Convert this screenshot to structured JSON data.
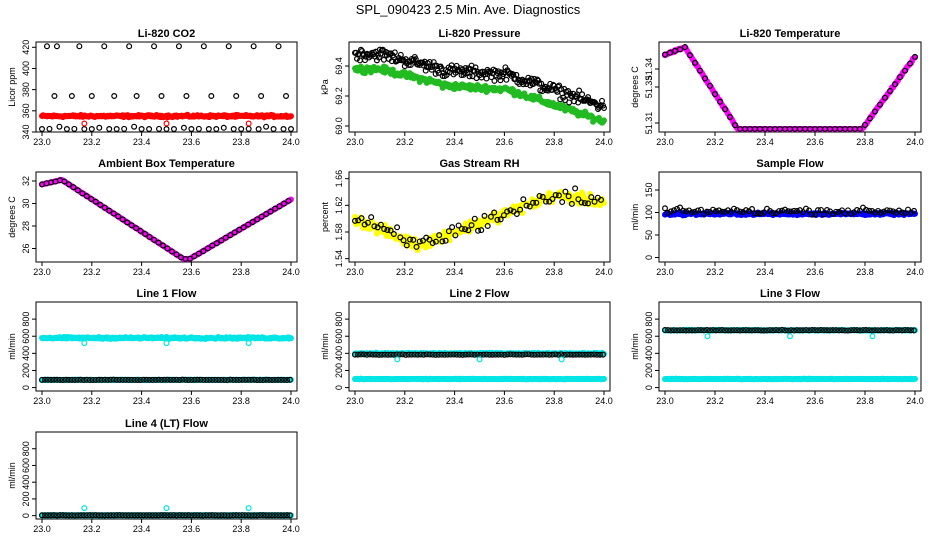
{
  "page_title": "SPL_090423  2.5 Min. Ave. Diagnostics",
  "chart_data": [
    {
      "id": "co2",
      "type": "scatter",
      "title": "Li-820 CO2",
      "ylabel": "Licor ppm",
      "xlim": [
        23.0,
        24.0
      ],
      "ylim": [
        340,
        425
      ],
      "xticks": [
        "23.0",
        "23.2",
        "23.4",
        "23.6",
        "23.8",
        "24.0"
      ],
      "yticks": [
        340,
        360,
        380,
        400,
        420
      ],
      "series": [
        {
          "name": "CO2 black",
          "color": "#000000",
          "shape": "open",
          "x": [
            23.0,
            23.03,
            23.07,
            23.1,
            23.13,
            23.17,
            23.2,
            23.23,
            23.27,
            23.3,
            23.33,
            23.37,
            23.4,
            23.43,
            23.47,
            23.5,
            23.53,
            23.57,
            23.6,
            23.63,
            23.67,
            23.7,
            23.73,
            23.77,
            23.8,
            23.83,
            23.87,
            23.9,
            23.93,
            23.97,
            24.0,
            23.02,
            23.06,
            23.15,
            23.25,
            23.35,
            23.45,
            23.55,
            23.65,
            23.75,
            23.85,
            23.95,
            23.05,
            23.12,
            23.2,
            23.29,
            23.38,
            23.48,
            23.58,
            23.68,
            23.78,
            23.88,
            23.98
          ],
          "y": [
            340,
            343,
            345,
            341,
            343,
            340,
            342,
            344,
            340,
            341,
            343,
            345,
            340,
            342,
            343,
            341,
            340,
            344,
            341,
            343,
            340,
            341,
            344,
            342,
            340,
            343,
            341,
            345,
            340,
            342,
            341,
            421,
            421,
            421,
            421,
            421,
            421,
            421,
            421,
            421,
            421,
            421,
            374,
            374,
            374,
            374,
            374,
            374,
            374,
            374,
            374,
            374,
            374
          ]
        },
        {
          "name": "CO2 red",
          "color": "#ff0000",
          "shape": "filled",
          "fn": "flat",
          "base": 355,
          "noise": 1.5
        },
        {
          "name": "CO2 red low",
          "color": "#ff0000",
          "shape": "open",
          "x": [
            23.17,
            23.5,
            23.83
          ],
          "y": [
            348,
            348,
            348
          ]
        }
      ]
    },
    {
      "id": "pressure",
      "type": "scatter",
      "title": "Li-820 Pressure",
      "ylabel": "kPa",
      "xlim": [
        23.0,
        24.0
      ],
      "ylim": [
        68.96,
        69.56
      ],
      "xticks": [
        "23.0",
        "23.2",
        "23.4",
        "23.6",
        "23.8",
        "24.0"
      ],
      "yticks": [
        "69.0",
        "69.2",
        "69.4"
      ],
      "series": [
        {
          "name": "Pressure green",
          "color": "#22bb22",
          "shape": "filled",
          "fn": "pressure",
          "noise": 0.03
        },
        {
          "name": "Pressure black",
          "color": "#000000",
          "shape": "open",
          "fn": "pressure_black",
          "noise": 0.06
        }
      ]
    },
    {
      "id": "licor_temp",
      "type": "scatter",
      "title": "Li-820 Temperature",
      "ylabel": "degrees C",
      "xlim": [
        23.0,
        24.0
      ],
      "ylim": [
        51.305,
        51.355
      ],
      "xticks": [
        "23.0",
        "23.2",
        "23.4",
        "23.6",
        "23.8",
        "24.0"
      ],
      "yticks": [
        "51.31",
        "51.33",
        "51.34"
      ],
      "series": [
        {
          "name": "Li-820 temperature magenta",
          "color": "#ff00ff",
          "shape": "filled",
          "fn": "licor_temp",
          "noise": 0.0008
        },
        {
          "name": "Li-820 temperature black",
          "color": "#000000",
          "shape": "open",
          "fn": "licor_temp",
          "noise": 0.0003,
          "step": 0.02
        }
      ]
    },
    {
      "id": "box_temp",
      "type": "scatter",
      "title": "Ambient Box Temperature",
      "ylabel": "degrees C",
      "xlim": [
        23.0,
        24.0
      ],
      "ylim": [
        24.8,
        32.8
      ],
      "xticks": [
        "23.0",
        "23.2",
        "23.4",
        "23.6",
        "23.8",
        "24.0"
      ],
      "yticks": [
        26,
        28,
        30,
        32
      ],
      "series": [
        {
          "name": "Box temperature magenta",
          "color": "#ff00ff",
          "shape": "filled",
          "fn": "box_temp",
          "noise": 0.02
        },
        {
          "name": "Box temperature black",
          "color": "#000000",
          "shape": "open",
          "fn": "box_temp",
          "noise": 0.02,
          "step": 0.018
        }
      ]
    },
    {
      "id": "rh",
      "type": "scatter",
      "title": "Gas Stream RH",
      "ylabel": "percent",
      "xlim": [
        23.0,
        24.0
      ],
      "ylim": [
        1.535,
        1.67
      ],
      "xticks": [
        "23.0",
        "23.2",
        "23.4",
        "23.6",
        "23.8",
        "24.0"
      ],
      "yticks": [
        "1.54",
        "1.58",
        "1.62",
        "1.66"
      ],
      "series": [
        {
          "name": "RH yellow",
          "color": "#ffff00",
          "shape": "filled",
          "fn": "rh",
          "noise": 0.012
        },
        {
          "name": "RH black",
          "color": "#000000",
          "shape": "open",
          "fn": "rh",
          "noise": 0.02,
          "step": 0.013
        }
      ]
    },
    {
      "id": "sample_flow",
      "type": "scatter",
      "title": "Sample Flow",
      "ylabel": "ml/min",
      "xlim": [
        23.0,
        24.0
      ],
      "ylim": [
        -10,
        190
      ],
      "xticks": [
        "23.0",
        "23.2",
        "23.4",
        "23.6",
        "23.8",
        "24.0"
      ],
      "yticks": [
        0,
        50,
        100,
        150
      ],
      "series": [
        {
          "name": "Sample flow blue",
          "color": "#0000ff",
          "shape": "filled",
          "fn": "flat",
          "base": 97,
          "noise": 4
        },
        {
          "name": "Sample flow black",
          "color": "#000000",
          "shape": "open",
          "fn": "flat",
          "base": 103,
          "noise": 10,
          "step": 0.012
        }
      ]
    },
    {
      "id": "line1",
      "type": "scatter",
      "title": "Line 1 Flow",
      "ylabel": "ml/min",
      "xlim": [
        23.0,
        24.0
      ],
      "ylim": [
        -40,
        1000
      ],
      "xticks": [
        "23.0",
        "23.2",
        "23.4",
        "23.6",
        "23.8",
        "24.0"
      ],
      "yticks": [
        0,
        200,
        400,
        600,
        800
      ],
      "series": [
        {
          "name": "Line 1 cyan high",
          "color": "#00e5e5",
          "shape": "filled",
          "fn": "flat",
          "base": 580,
          "noise": 15
        },
        {
          "name": "Line 1 cyan low",
          "color": "#00e5e5",
          "shape": "filled",
          "fn": "flat",
          "base": 90,
          "noise": 5
        },
        {
          "name": "Line 1 black",
          "color": "#000000",
          "shape": "open",
          "fn": "flat",
          "base": 90,
          "noise": 3,
          "step": 0.012
        },
        {
          "name": "Line 1 cyan outliers",
          "color": "#00e5e5",
          "shape": "open",
          "x": [
            23.17,
            23.5,
            23.83
          ],
          "y": [
            520,
            520,
            520
          ]
        }
      ]
    },
    {
      "id": "line2",
      "type": "scatter",
      "title": "Line 2 Flow",
      "ylabel": "ml/min",
      "xlim": [
        23.0,
        24.0
      ],
      "ylim": [
        -40,
        1000
      ],
      "xticks": [
        "23.0",
        "23.2",
        "23.4",
        "23.6",
        "23.8",
        "24.0"
      ],
      "yticks": [
        0,
        200,
        400,
        600,
        800
      ],
      "series": [
        {
          "name": "Line 2 cyan high",
          "color": "#00e5e5",
          "shape": "filled",
          "fn": "flat",
          "base": 400,
          "noise": 8
        },
        {
          "name": "Line 2 cyan low",
          "color": "#00e5e5",
          "shape": "filled",
          "fn": "flat",
          "base": 100,
          "noise": 5
        },
        {
          "name": "Line 2 black",
          "color": "#000000",
          "shape": "open",
          "fn": "flat",
          "base": 385,
          "noise": 5,
          "step": 0.012
        },
        {
          "name": "Line 2 cyan outliers",
          "color": "#00e5e5",
          "shape": "open",
          "x": [
            23.17,
            23.5,
            23.83
          ],
          "y": [
            330,
            330,
            330
          ]
        }
      ]
    },
    {
      "id": "line3",
      "type": "scatter",
      "title": "Line 3 Flow",
      "ylabel": "ml/min",
      "xlim": [
        23.0,
        24.0
      ],
      "ylim": [
        -40,
        1000
      ],
      "xticks": [
        "23.0",
        "23.2",
        "23.4",
        "23.6",
        "23.8",
        "24.0"
      ],
      "yticks": [
        0,
        200,
        400,
        600,
        800
      ],
      "series": [
        {
          "name": "Line 3 cyan high",
          "color": "#00e5e5",
          "shape": "filled",
          "fn": "flat",
          "base": 670,
          "noise": 8
        },
        {
          "name": "Line 3 cyan low",
          "color": "#00e5e5",
          "shape": "filled",
          "fn": "flat",
          "base": 100,
          "noise": 5
        },
        {
          "name": "Line 3 black",
          "color": "#000000",
          "shape": "open",
          "fn": "flat",
          "base": 670,
          "noise": 5,
          "step": 0.012
        },
        {
          "name": "Line 3 cyan outliers",
          "color": "#00e5e5",
          "shape": "open",
          "x": [
            23.17,
            23.5,
            23.83
          ],
          "y": [
            600,
            600,
            600
          ]
        }
      ]
    },
    {
      "id": "line4",
      "type": "scatter",
      "title": "Line 4 (LT) Flow",
      "ylabel": "ml/min",
      "xlim": [
        23.0,
        24.0
      ],
      "ylim": [
        -40,
        1000
      ],
      "xticks": [
        "23.0",
        "23.2",
        "23.4",
        "23.6",
        "23.8",
        "24.0"
      ],
      "yticks": [
        0,
        200,
        400,
        600,
        800
      ],
      "series": [
        {
          "name": "Line 4 cyan",
          "color": "#00e5e5",
          "shape": "filled",
          "fn": "flat",
          "base": 5,
          "noise": 3
        },
        {
          "name": "Line 4 black",
          "color": "#000000",
          "shape": "open",
          "fn": "flat",
          "base": 5,
          "noise": 2,
          "step": 0.012
        },
        {
          "name": "Line 4 cyan outliers",
          "color": "#00e5e5",
          "shape": "open",
          "x": [
            23.17,
            23.5,
            23.83
          ],
          "y": [
            90,
            90,
            90
          ]
        }
      ]
    }
  ]
}
